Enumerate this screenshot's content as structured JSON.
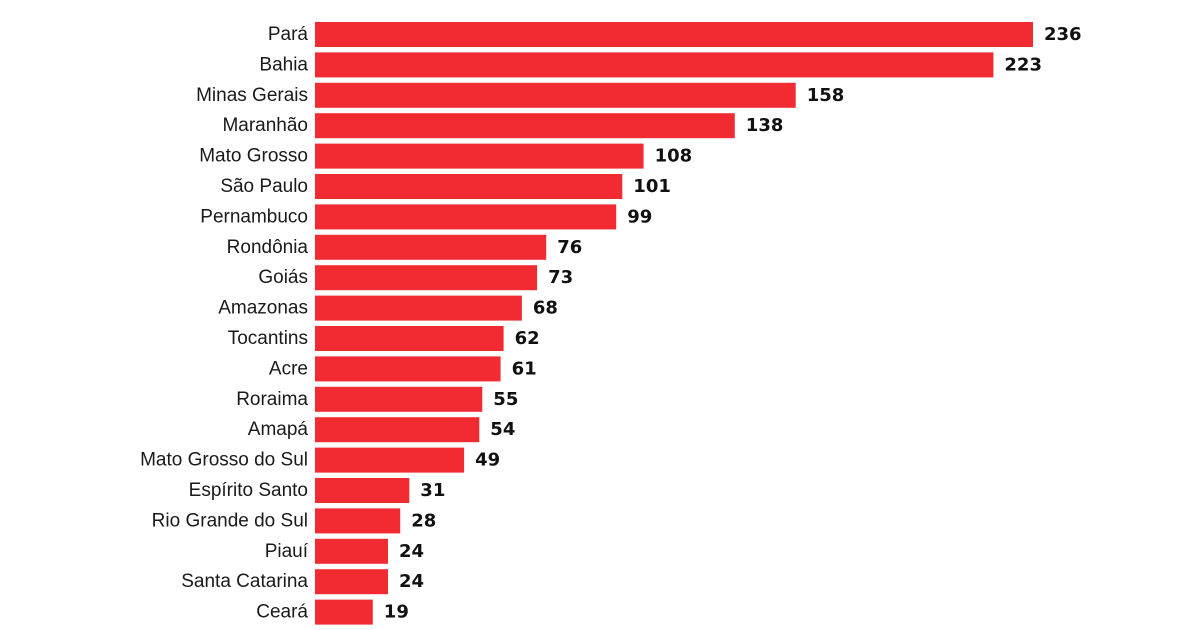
{
  "chart_data": {
    "type": "bar",
    "orientation": "horizontal",
    "title": "",
    "xlabel": "",
    "ylabel": "",
    "grid": false,
    "bar_color": "#f22b32",
    "xlim": [
      0,
      236
    ],
    "categories": [
      "Pará",
      "Bahia",
      "Minas Gerais",
      "Maranhão",
      "Mato Grosso",
      "São Paulo",
      "Pernambuco",
      "Rondônia",
      "Goiás",
      "Amazonas",
      "Tocantins",
      "Acre",
      "Roraima",
      "Amapá",
      "Mato Grosso do Sul",
      "Espírito Santo",
      "Rio Grande do Sul",
      "Piauí",
      "Santa Catarina",
      "Ceará"
    ],
    "values": [
      236,
      223,
      158,
      138,
      108,
      101,
      99,
      76,
      73,
      68,
      62,
      61,
      55,
      54,
      49,
      31,
      28,
      24,
      24,
      19
    ]
  }
}
